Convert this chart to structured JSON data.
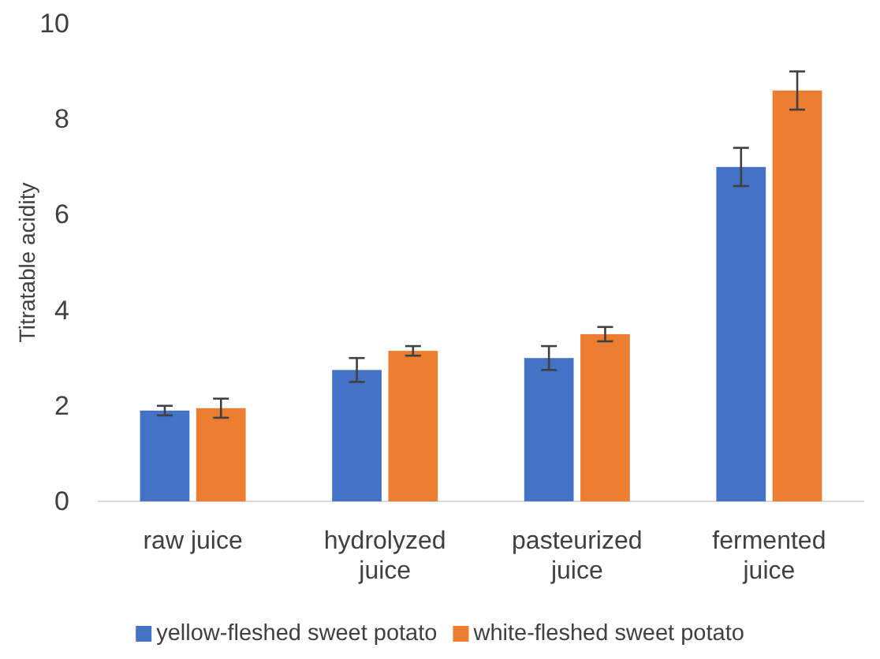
{
  "chart_data": {
    "type": "bar",
    "ylabel": "Titratable acidity",
    "categories": [
      "raw juice",
      "hydrolyzed juice",
      "pasteurized juice",
      "fermented juice"
    ],
    "series": [
      {
        "name": "yellow-fleshed sweet potato",
        "color": "#4472c4",
        "values": [
          1.9,
          2.75,
          3.0,
          7.0
        ],
        "errors": [
          0.1,
          0.25,
          0.25,
          0.4
        ]
      },
      {
        "name": "white-fleshed sweet potato",
        "color": "#ed7d31",
        "values": [
          1.95,
          3.15,
          3.5,
          8.6
        ],
        "errors": [
          0.2,
          0.1,
          0.15,
          0.4
        ]
      }
    ],
    "ylim": [
      0,
      10
    ],
    "yticks": [
      0,
      2,
      4,
      6,
      8,
      10
    ],
    "grid": false,
    "legend": "bottom"
  }
}
